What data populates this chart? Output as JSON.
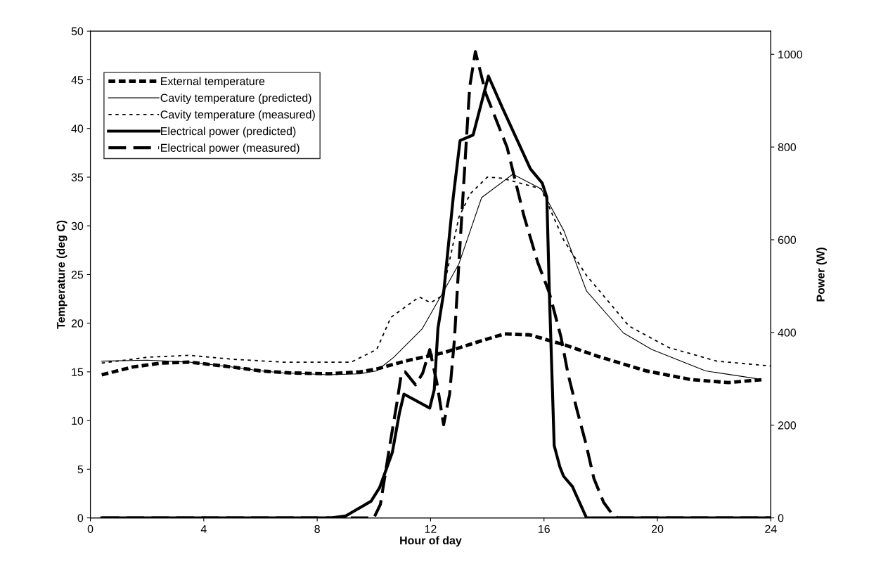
{
  "chart_data": {
    "type": "line",
    "xlabel": "Hour of day",
    "ylabel": "Temperature (deg C)",
    "y2label": "Power (W)",
    "xlim": [
      0,
      24
    ],
    "xticks": [
      0,
      4,
      8,
      12,
      16,
      20,
      24
    ],
    "ylim": [
      0,
      50
    ],
    "yticks": [
      0,
      5,
      10,
      15,
      20,
      25,
      30,
      35,
      40,
      45,
      50
    ],
    "y2lim": [
      0,
      1050
    ],
    "y2ticks": [
      0,
      200,
      400,
      600,
      800,
      1000
    ],
    "grid": false,
    "legend": "top left",
    "marker": "none",
    "series": [
      {
        "name": "External temperature",
        "color": "#000000",
        "line_style": "dashed",
        "x": [
          0.4,
          1.5,
          2.5,
          3.5,
          5,
          6,
          7,
          8.4,
          9.5,
          10.1,
          11.1,
          12.5,
          13.8,
          14.6,
          15.5,
          16.7,
          17.9,
          19.6,
          21.2,
          22.5,
          23.7
        ],
        "values": [
          14.7,
          15.5,
          15.9,
          16.0,
          15.5,
          15.1,
          14.9,
          14.8,
          15.0,
          15.3,
          16.1,
          17.0,
          18.2,
          18.9,
          18.8,
          17.8,
          16.6,
          15.1,
          14.2,
          13.9,
          14.2
        ]
      },
      {
        "name": "Cavity temperature (predicted)",
        "color": "#000000",
        "line_style": "solid",
        "x": [
          0.4,
          2,
          3.5,
          5,
          6,
          6.8,
          8.4,
          9.5,
          10.1,
          10.7,
          11.7,
          12.5,
          13.0,
          13.8,
          14.9,
          15.9,
          16.7,
          17.5,
          18.8,
          19.8,
          21.7,
          23.5
        ],
        "values": [
          16.1,
          16.2,
          16.0,
          15.5,
          15.1,
          14.9,
          14.7,
          14.8,
          15.1,
          16.5,
          19.4,
          23.5,
          26.1,
          32.9,
          35.3,
          33.8,
          29.5,
          23.3,
          19.0,
          17.3,
          15.1,
          14.3
        ]
      },
      {
        "name": "Cavity temperature (measured)",
        "color": "#000000",
        "line_style": "dotted",
        "x": [
          0.4,
          2,
          3.5,
          5,
          6.8,
          9.2,
          10.1,
          10.6,
          11.6,
          12.0,
          12.4,
          13.0,
          13.4,
          14.0,
          14.5,
          15.9,
          16.7,
          17.5,
          19.0,
          20.4,
          22.1,
          24
        ],
        "values": [
          15.9,
          16.5,
          16.7,
          16.3,
          16.0,
          16.0,
          17.3,
          20.6,
          22.7,
          22.1,
          22.8,
          30.9,
          33.3,
          35.0,
          34.9,
          33.8,
          28.5,
          24.9,
          19.7,
          17.5,
          16.1,
          15.6
        ]
      },
      {
        "name": "Electrical power (predicted)",
        "color": "#000000",
        "line_style": "solid",
        "axis": "y2",
        "x": [
          0.4,
          8.5,
          9.0,
          9.9,
          10.2,
          10.65,
          10.9,
          11.06,
          11.97,
          12.13,
          12.26,
          12.46,
          12.8,
          13.04,
          13.5,
          14.04,
          14.53,
          15.52,
          15.94,
          16.1,
          16.19,
          16.36,
          16.56,
          16.69,
          17.01,
          17.1,
          17.5,
          18,
          24
        ],
        "values": [
          0,
          0,
          4,
          36,
          65,
          141,
          226,
          267,
          237,
          277,
          409,
          485,
          692,
          814,
          826,
          953,
          885,
          753,
          722,
          692,
          484,
          156,
          110,
          90,
          67,
          54,
          0,
          0,
          0
        ]
      },
      {
        "name": "Electrical power (measured)",
        "color": "#000000",
        "line_style": "dashed",
        "axis": "y2",
        "x": [
          0.4,
          9.8,
          10.0,
          10.23,
          10.56,
          10.81,
          10.97,
          11.1,
          11.47,
          11.72,
          11.97,
          12.22,
          12.46,
          12.67,
          12.84,
          12.96,
          13.25,
          13.38,
          13.58,
          13.95,
          14.7,
          15.29,
          15.78,
          16.19,
          16.6,
          16.85,
          17.15,
          17.48,
          17.76,
          18.1,
          18.43,
          18.6,
          24
        ],
        "values": [
          0,
          0,
          0,
          29,
          156,
          247,
          312,
          315,
          287,
          312,
          363,
          292,
          201,
          267,
          384,
          510,
          803,
          930,
          1006,
          915,
          799,
          652,
          551,
          485,
          390,
          310,
          236,
          160,
          85,
          34,
          6,
          0,
          0
        ]
      }
    ]
  }
}
